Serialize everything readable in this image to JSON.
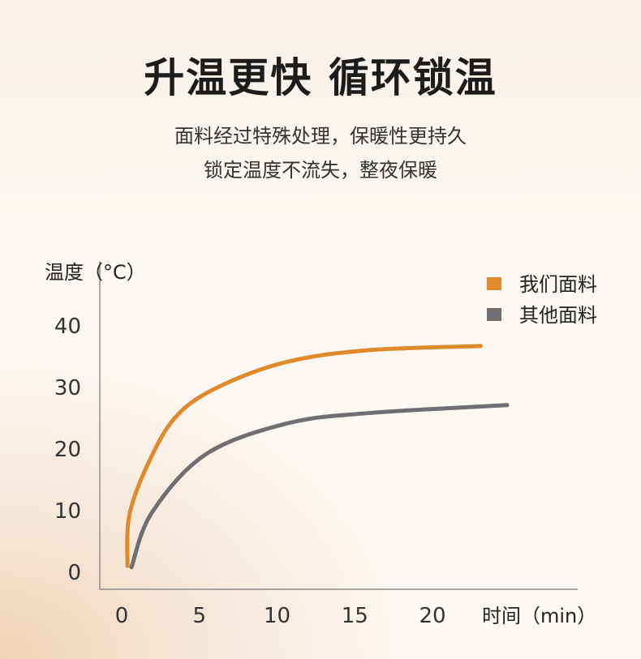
{
  "header": {
    "title": "升温更快 循环锁温",
    "subtitle_lines": [
      "面料经过特殊处理，保暖性更持久",
      "锁定温度不流失，整夜保暖"
    ]
  },
  "chart_data": {
    "type": "line",
    "title": "",
    "xlabel": "时间（min）",
    "ylabel": "温度（°C）",
    "xlim": [
      0,
      26
    ],
    "ylim": [
      0,
      45
    ],
    "x_ticks": [
      "0",
      "5",
      "10",
      "15",
      "20"
    ],
    "y_ticks": [
      "0",
      "10",
      "20",
      "30",
      "40"
    ],
    "grid": false,
    "legend_position": "top-right",
    "series": [
      {
        "name": "我们面料",
        "color": "#e08a2c",
        "points": [
          [
            0.37,
            0.9
          ],
          [
            0.52,
            9.5
          ],
          [
            1.98,
            19
          ],
          [
            3.66,
            25.6
          ],
          [
            6.27,
            30
          ],
          [
            10.6,
            34
          ],
          [
            15.8,
            35.9
          ],
          [
            23.1,
            36.6
          ]
        ]
      },
      {
        "name": "其他面料",
        "color": "#6f6e72",
        "points": [
          [
            0.63,
            0.7
          ],
          [
            1.93,
            9.5
          ],
          [
            5.4,
            19
          ],
          [
            10.6,
            24
          ],
          [
            15.8,
            25.7
          ],
          [
            24.8,
            27
          ]
        ]
      }
    ]
  }
}
